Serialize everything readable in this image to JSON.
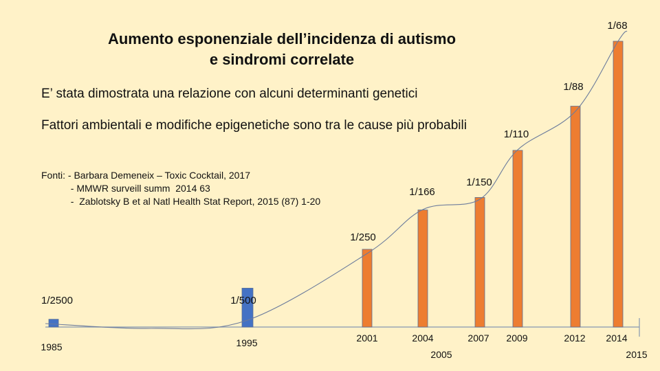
{
  "slide": {
    "title_line1": "Aumento esponenziale dell’incidenza di autismo",
    "title_line2": "e sindromi correlate",
    "statement1": "E’ stata dimostrata una relazione con alcuni determinanti genetici",
    "statement2": "Fattori ambientali e modifiche epigenetiche sono tra le cause più probabili",
    "sources": [
      "Fonti: - Barbara Demeneix – Toxic Cocktail, 2017",
      "           - MMWR surveill summ  2014 63",
      "           -  Zablotsky B et al Natl Health Stat Report, 2015 (87) 1-20"
    ]
  },
  "chart_data": {
    "type": "bar",
    "title": "Aumento esponenziale dell’incidenza di autismo e sindromi correlate",
    "xlabel": "",
    "ylabel": "",
    "ylim": [
      0,
      0.0155
    ],
    "categories": [
      "1985",
      "1995",
      "2001",
      "2004",
      "2007",
      "2009",
      "2012",
      "2014"
    ],
    "bar_labels": [
      "1/2500",
      "1/500",
      "1/250",
      "1/166",
      "1/150",
      "1/110",
      "1/88",
      "1/68"
    ],
    "values": [
      0.0004,
      0.002,
      0.004,
      0.006024,
      0.006667,
      0.009091,
      0.011364,
      0.014706
    ],
    "bar_colors": [
      "#4472c4",
      "#4472c4",
      "#ed7d31",
      "#ed7d31",
      "#ed7d31",
      "#ed7d31",
      "#ed7d31",
      "#ed7d31"
    ],
    "extra_axis_labels": [
      "2005",
      "2015"
    ],
    "trend_line": true,
    "grid": false,
    "colors": {
      "axis": "#8497b0",
      "trend": "#6b7b9c",
      "background": "#fff2c8"
    }
  }
}
